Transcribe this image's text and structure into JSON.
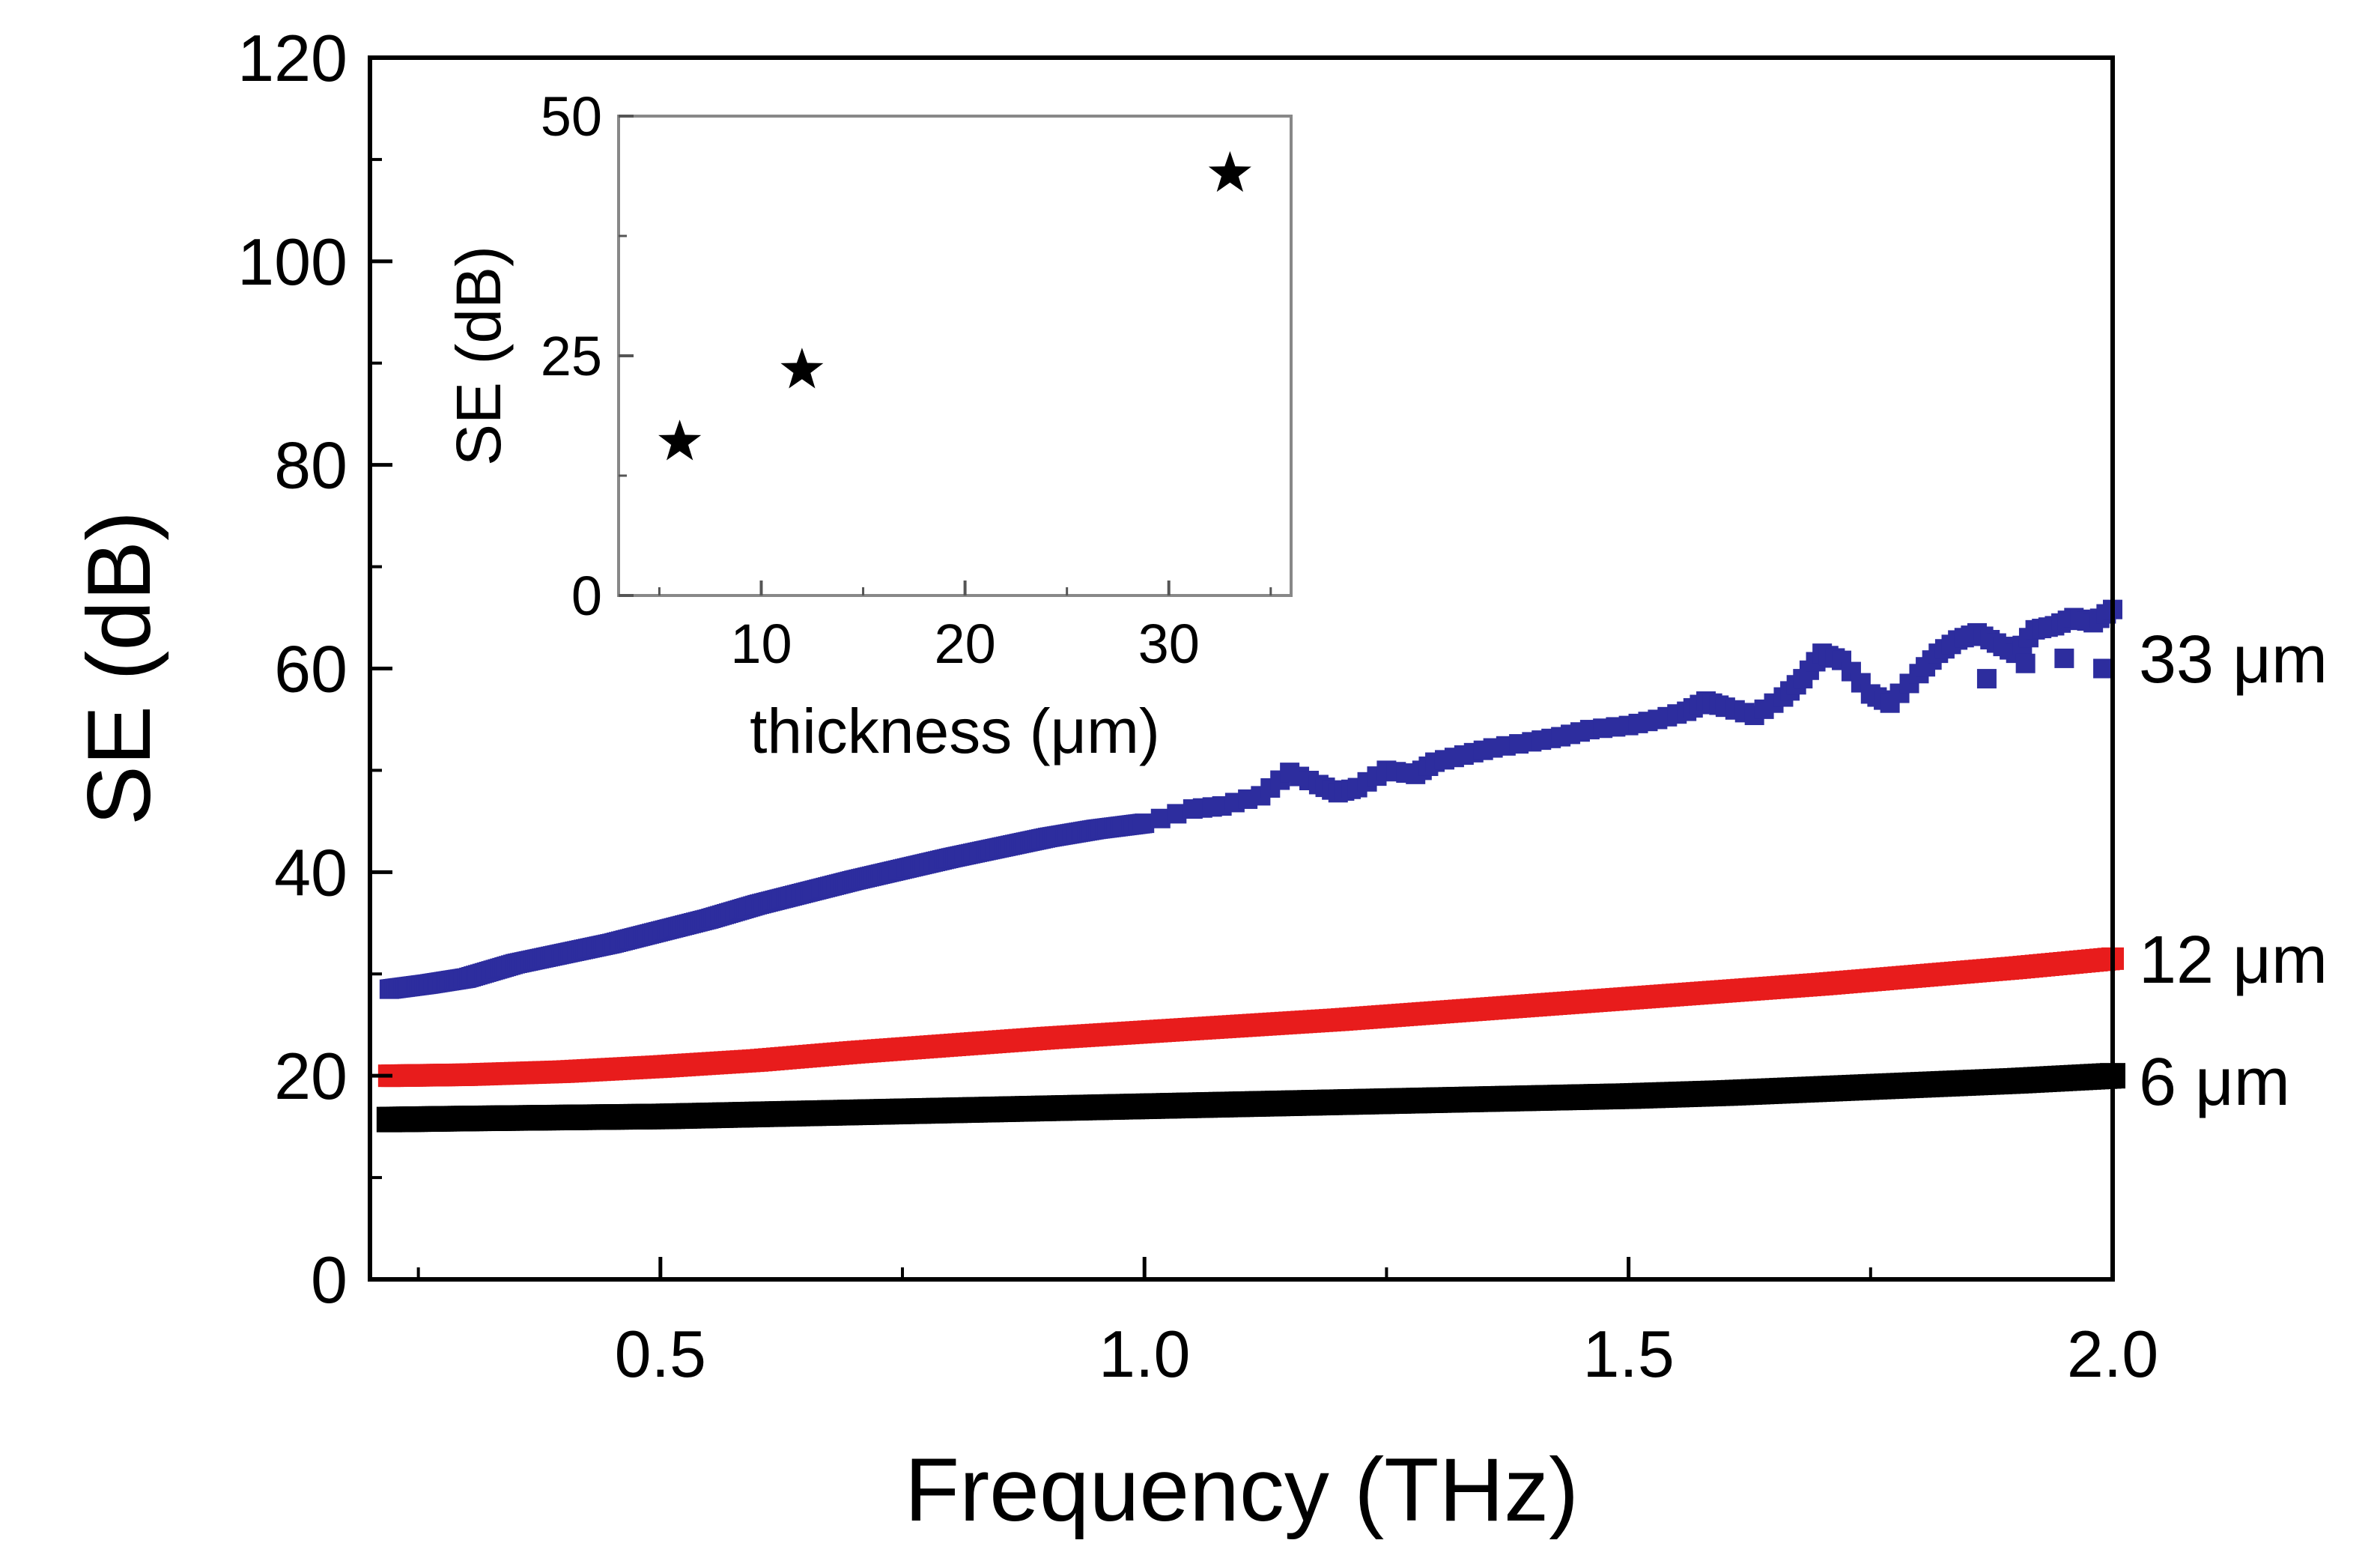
{
  "chart_data": [
    {
      "type": "scatter",
      "role": "main",
      "title": "",
      "xlabel": "Frequency (THz)",
      "ylabel": "SE (dB)",
      "xlim": [
        0.2,
        2.0
      ],
      "ylim": [
        0,
        120
      ],
      "xticks": [
        0.5,
        1.0,
        1.5,
        2.0
      ],
      "xtick_labels": [
        "0.5",
        "1.0",
        "1.5",
        "2.0"
      ],
      "yticks": [
        0,
        20,
        40,
        60,
        80,
        100,
        120
      ],
      "ytick_labels": [
        "0",
        "20",
        "40",
        "60",
        "80",
        "100",
        "120"
      ],
      "grid": false,
      "legend": "inline labels at right edge",
      "series": [
        {
          "label": "6 μm",
          "color": "#000000",
          "marker": "square",
          "x": [
            0.22,
            0.3,
            0.4,
            0.5,
            0.6,
            0.7,
            0.8,
            0.9,
            1.0,
            1.1,
            1.2,
            1.3,
            1.4,
            1.5,
            1.6,
            1.7,
            1.8,
            1.9,
            2.0
          ],
          "y": [
            15.7,
            15.8,
            15.9,
            16.0,
            16.2,
            16.4,
            16.6,
            16.8,
            17.0,
            17.2,
            17.4,
            17.6,
            17.8,
            18.0,
            18.3,
            18.7,
            19.1,
            19.5,
            20.0
          ]
        },
        {
          "label": "12 μm",
          "color": "#e81c1c",
          "marker": "square",
          "x": [
            0.22,
            0.3,
            0.4,
            0.5,
            0.6,
            0.7,
            0.8,
            0.9,
            1.0,
            1.1,
            1.2,
            1.3,
            1.4,
            1.5,
            1.6,
            1.7,
            1.8,
            1.9,
            2.0
          ],
          "y": [
            20.0,
            20.1,
            20.4,
            20.9,
            21.5,
            22.3,
            23.0,
            23.7,
            24.3,
            24.9,
            25.5,
            26.2,
            26.9,
            27.6,
            28.3,
            29.0,
            29.8,
            30.6,
            31.5
          ]
        },
        {
          "label": "33 μm",
          "color": "#2d2d9e",
          "marker": "square",
          "x": [
            0.22,
            0.26,
            0.3,
            0.35,
            0.4,
            0.45,
            0.5,
            0.55,
            0.6,
            0.65,
            0.7,
            0.75,
            0.8,
            0.85,
            0.9,
            0.95,
            1.0,
            1.05,
            1.08,
            1.12,
            1.15,
            1.18,
            1.2,
            1.22,
            1.25,
            1.28,
            1.3,
            1.33,
            1.36,
            1.4,
            1.43,
            1.46,
            1.5,
            1.53,
            1.56,
            1.58,
            1.6,
            1.63,
            1.66,
            1.68,
            1.7,
            1.72,
            1.75,
            1.77,
            1.8,
            1.82,
            1.84,
            1.86,
            1.88,
            1.9,
            1.92,
            1.94,
            1.96,
            1.98,
            2.0,
            1.87,
            1.91,
            1.95,
            1.99
          ],
          "y": [
            28.5,
            29.0,
            29.6,
            31.0,
            32.0,
            33.0,
            34.2,
            35.4,
            36.8,
            38.0,
            39.2,
            40.3,
            41.4,
            42.4,
            43.4,
            44.2,
            44.8,
            46.2,
            46.5,
            47.5,
            49.8,
            48.6,
            47.8,
            48.3,
            50.0,
            49.6,
            50.8,
            51.5,
            52.2,
            52.8,
            53.3,
            54.0,
            54.4,
            55.0,
            55.8,
            56.8,
            56.2,
            55.4,
            57.2,
            59.0,
            61.5,
            60.8,
            57.5,
            56.6,
            59.5,
            61.5,
            62.8,
            63.5,
            62.5,
            61.5,
            63.8,
            64.2,
            65.0,
            64.5,
            65.8,
            59.0,
            60.5,
            61.0,
            60.0
          ]
        }
      ]
    },
    {
      "type": "scatter",
      "role": "inset",
      "title": "",
      "xlabel": "thickness (μm)",
      "ylabel": "SE (dB)",
      "xlim": [
        3,
        36
      ],
      "ylim": [
        0,
        50
      ],
      "xticks": [
        10,
        20,
        30
      ],
      "xtick_labels": [
        "10",
        "20",
        "30"
      ],
      "yticks": [
        0,
        25,
        50
      ],
      "ytick_labels": [
        "0",
        "25",
        "50"
      ],
      "grid": false,
      "series": [
        {
          "color": "#000000",
          "marker": "star",
          "x": [
            6,
            12,
            33
          ],
          "y": [
            16,
            23.5,
            44
          ]
        }
      ]
    }
  ]
}
